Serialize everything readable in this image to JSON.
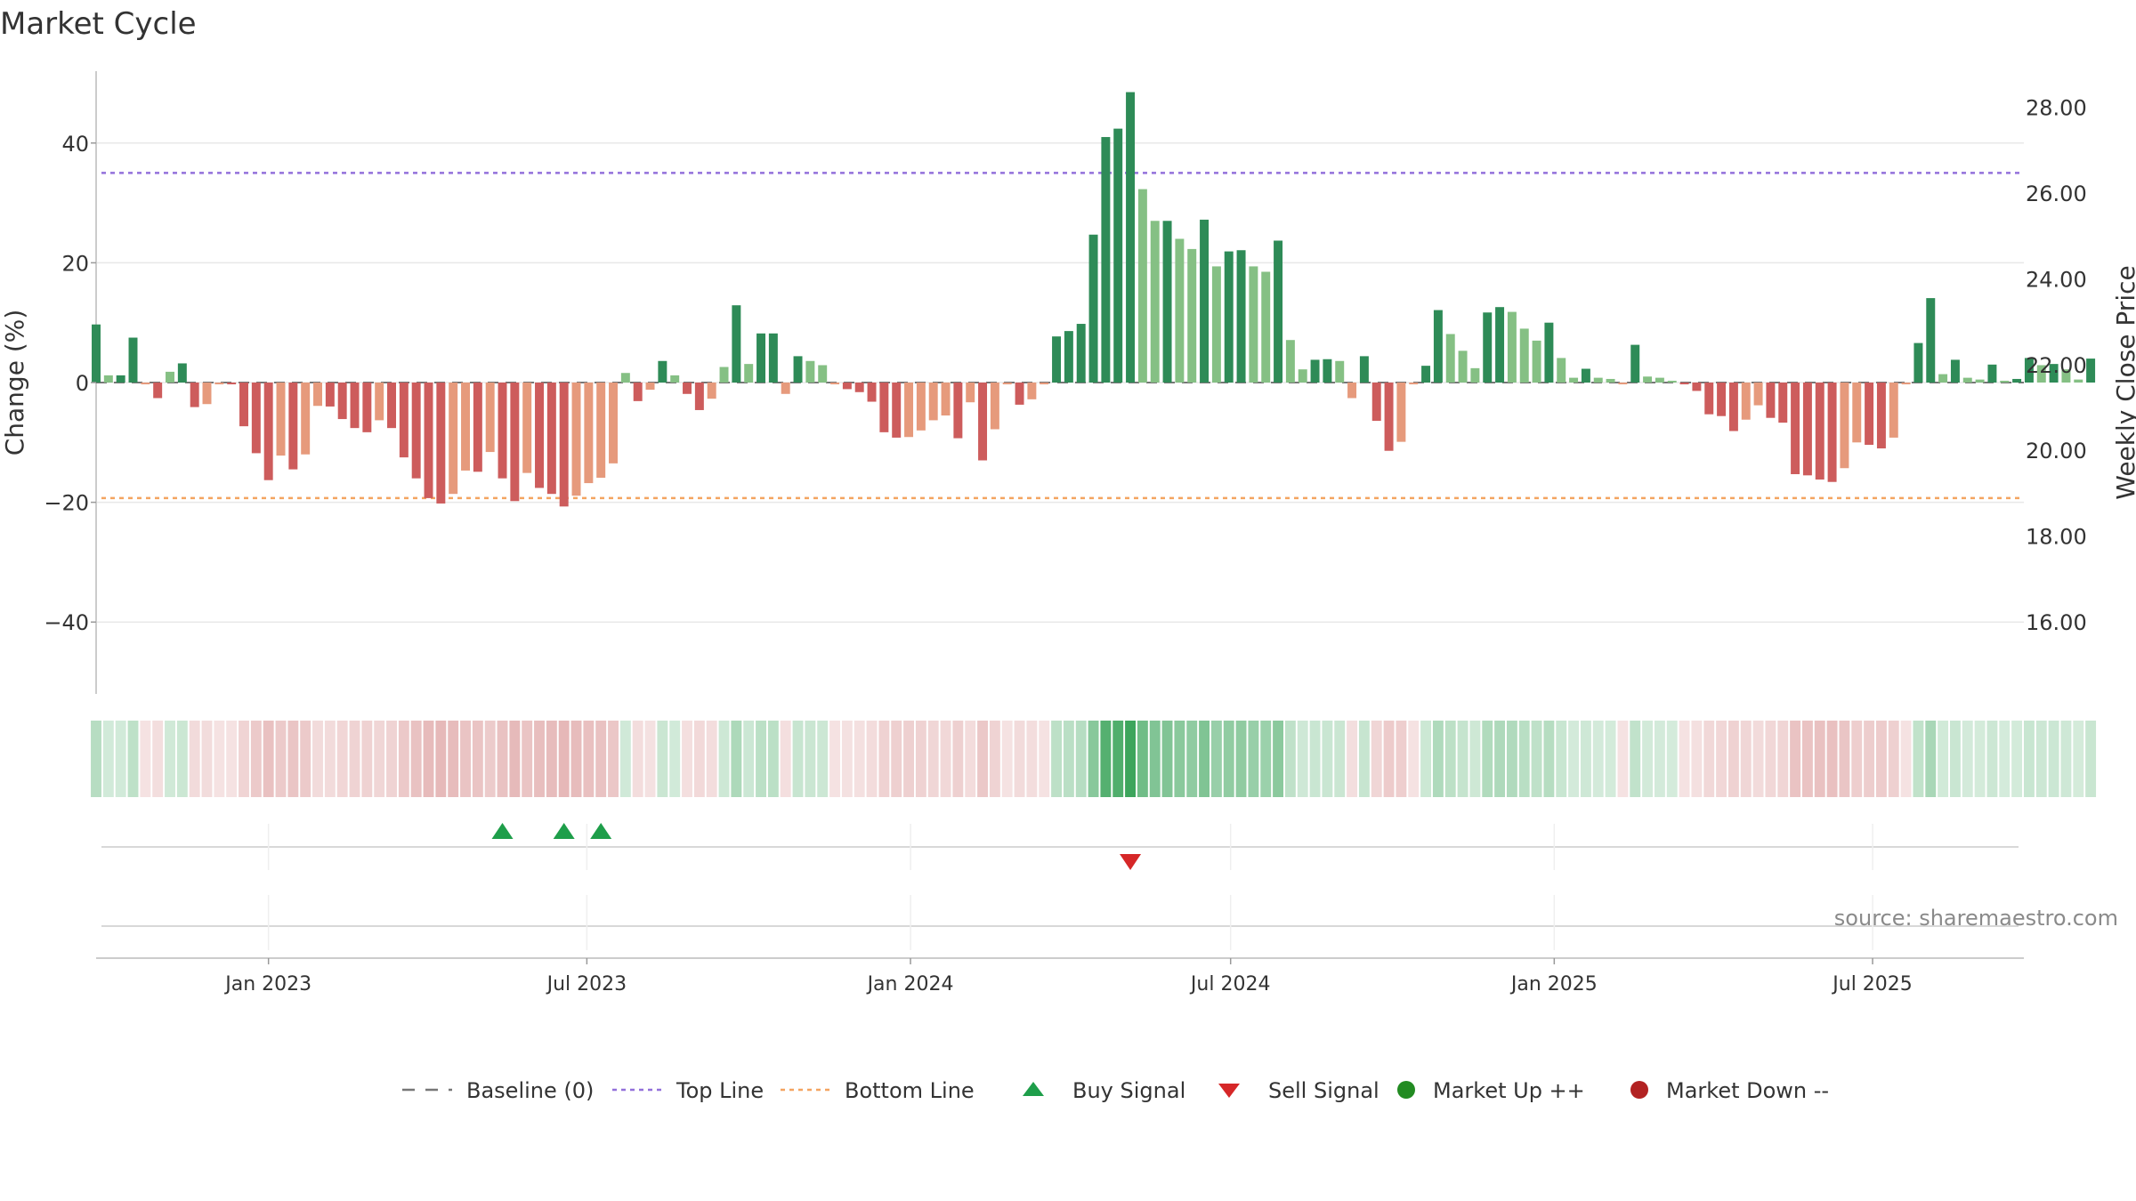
{
  "chart_data": {
    "title": "Market Cycle",
    "type": "bar",
    "ylabel_left": "Change (%)",
    "ylabel_right": "Weekly Close Price",
    "ylim_left": [
      -52,
      52
    ],
    "yticks_left": [
      -40,
      -20,
      0,
      20,
      40
    ],
    "ytick_labels_left": [
      "−40",
      "−20",
      "0",
      "20",
      "40"
    ],
    "ylim_right": [
      14.32,
      28.84
    ],
    "yticks_right": [
      16,
      18,
      20,
      22,
      24,
      26,
      28
    ],
    "ytick_labels_right": [
      "16.00",
      "18.00",
      "20.00",
      "22.00",
      "24.00",
      "26.00",
      "28.00"
    ],
    "xlim": [
      "2022-09-25",
      "2025-09-25"
    ],
    "xticks": [
      "2023-01-01",
      "2023-07-01",
      "2024-01-01",
      "2024-07-01",
      "2025-01-01",
      "2025-07-01"
    ],
    "xtick_labels": [
      "Jan 2023",
      "Jul 2023",
      "Jan 2024",
      "Jul 2024",
      "Jan 2025",
      "Jul 2025"
    ],
    "top_line": 35,
    "bottom_line": -19.3,
    "baseline": 0,
    "first_week": "2022-09-25",
    "week_step_days": 7,
    "change_values": [
      9.7,
      1.2,
      1.2,
      7.5,
      -0.3,
      -2.6,
      1.8,
      3.2,
      -4.1,
      -3.6,
      -0.3,
      -0.3,
      -7.3,
      -11.8,
      -16.3,
      -12.2,
      -14.5,
      -12.0,
      -3.9,
      -4.0,
      -6.1,
      -7.6,
      -8.3,
      -6.3,
      -7.6,
      -12.5,
      -16.0,
      -19.3,
      -20.2,
      -18.6,
      -14.7,
      -14.9,
      -11.6,
      -16.0,
      -19.8,
      -15.1,
      -17.6,
      -18.6,
      -20.7,
      -18.9,
      -16.8,
      -15.9,
      -13.5,
      1.6,
      -3.1,
      -1.2,
      3.6,
      1.2,
      -1.9,
      -4.6,
      -2.7,
      2.6,
      12.9,
      3.1,
      8.2,
      8.2,
      -1.9,
      4.4,
      3.6,
      2.9,
      -0.3,
      -1.1,
      -1.6,
      -3.2,
      -8.3,
      -9.2,
      -9.1,
      -8.0,
      -6.3,
      -5.5,
      -9.3,
      -3.3,
      -13.0,
      -7.8,
      -0.3,
      -3.7,
      -2.8,
      -0.3,
      7.7,
      8.6,
      9.8,
      24.7,
      41.0,
      42.4,
      48.5,
      32.3,
      27.0,
      27.0,
      24.0,
      22.3,
      27.2,
      19.4,
      21.9,
      22.1,
      19.4,
      18.5,
      23.7,
      7.1,
      2.2,
      3.8,
      3.9,
      3.6,
      -2.6,
      4.4,
      -6.4,
      -11.4,
      -9.9,
      -0.3,
      2.8,
      12.1,
      8.1,
      5.3,
      2.4,
      11.7,
      12.6,
      11.8,
      9.0,
      7.0,
      10.0,
      4.1,
      0.8,
      2.3,
      0.8,
      0.6,
      -0.3,
      6.3,
      1.0,
      0.8,
      0.3,
      -0.3,
      -1.4,
      -5.3,
      -5.6,
      -8.1,
      -6.2,
      -3.8,
      -5.9,
      -6.7,
      -15.3,
      -15.5,
      -16.2,
      -16.6,
      -14.3,
      -10.0,
      -10.4,
      -11.0,
      -9.2,
      -0.3,
      6.6,
      14.1,
      1.4,
      3.8,
      0.8,
      0.5,
      3.0,
      0.3,
      0.6,
      4.1,
      2.9,
      3.1,
      2.2,
      0.5,
      4.0
    ],
    "buy_signals": [
      "2023-05-14",
      "2023-06-18",
      "2023-07-09"
    ],
    "sell_signals": [
      "2024-05-05"
    ],
    "colors": {
      "up_strong": "#2e8b57",
      "up_weak": "#85c084",
      "down_strong": "#cd5c5c",
      "down_weak": "#e69a7c",
      "top_line": "#9370db",
      "bottom_line": "#f4a460",
      "baseline": "#777777",
      "buy": "#1e9e4a",
      "sell": "#d62728",
      "market_up": "#228b22",
      "market_down": "#b22222"
    },
    "legend": {
      "placement": "bottom-center",
      "entries": [
        {
          "label": "Baseline (0)",
          "marker": "dashed-line"
        },
        {
          "label": "Top Line",
          "marker": "dotted-line-purple"
        },
        {
          "label": "Bottom Line",
          "marker": "dotted-line-orange"
        },
        {
          "label": "Buy Signal",
          "marker": "triangle-up-green"
        },
        {
          "label": "Sell Signal",
          "marker": "triangle-down-red"
        },
        {
          "label": "Market Up ++",
          "marker": "circle-green"
        },
        {
          "label": "Market Down --",
          "marker": "circle-red"
        }
      ]
    },
    "source": "source: sharemaestro.com"
  }
}
